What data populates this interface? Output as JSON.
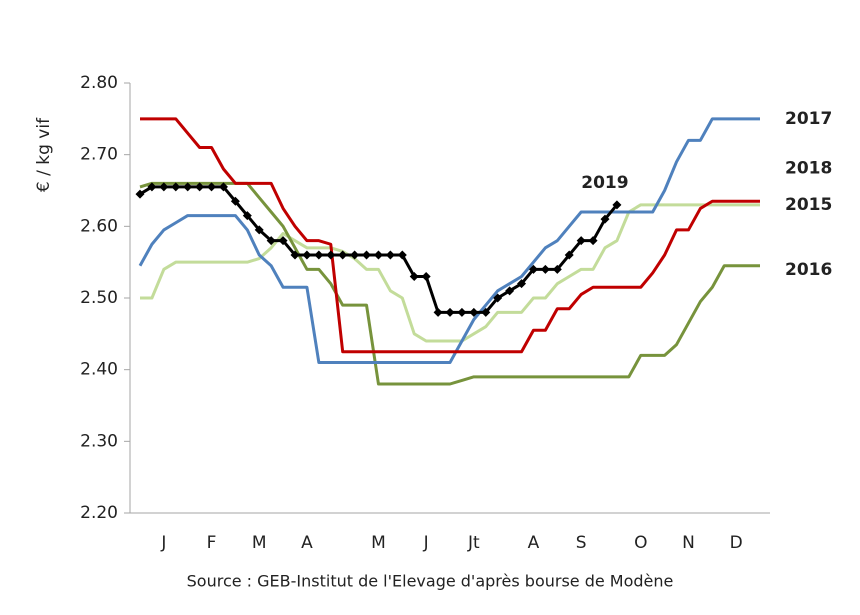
{
  "chart_data": {
    "type": "line",
    "y_label": "€ / kg vif",
    "source": "Source : GEB-Institut de l'Elevage d'après bourse de Modène",
    "categories": [
      null,
      null,
      "J",
      null,
      null,
      null,
      "F",
      null,
      null,
      null,
      "M",
      null,
      null,
      null,
      "A",
      null,
      null,
      null,
      null,
      null,
      "M",
      null,
      null,
      null,
      "J",
      null,
      null,
      null,
      "Jt",
      null,
      null,
      null,
      null,
      "A",
      null,
      null,
      null,
      "S",
      null,
      null,
      null,
      null,
      "O",
      null,
      null,
      null,
      "N",
      null,
      null,
      null,
      "D",
      null,
      null
    ],
    "ylim": [
      2.2,
      2.8
    ],
    "yticks": [
      {
        "value": 2.2,
        "label": "2.20"
      },
      {
        "value": 2.3,
        "label": "2.30"
      },
      {
        "value": 2.4,
        "label": "2.40"
      },
      {
        "value": 2.5,
        "label": "2.50"
      },
      {
        "value": 2.6,
        "label": "2.60"
      },
      {
        "value": 2.7,
        "label": "2.70"
      },
      {
        "value": 2.8,
        "label": "2.80"
      }
    ],
    "series": [
      {
        "name": "2015",
        "color": "#c3dc9a",
        "values": [
          2.5,
          2.5,
          2.54,
          2.55,
          2.55,
          2.55,
          2.55,
          2.55,
          2.55,
          2.55,
          2.555,
          2.57,
          2.59,
          2.58,
          2.57,
          2.57,
          2.57,
          2.565,
          2.555,
          2.54,
          2.54,
          2.51,
          2.5,
          2.45,
          2.44,
          2.44,
          2.44,
          2.44,
          2.45,
          2.46,
          2.48,
          2.48,
          2.48,
          2.5,
          2.5,
          2.52,
          2.53,
          2.54,
          2.54,
          2.57,
          2.58,
          2.62,
          2.63,
          2.63,
          2.63,
          2.63,
          2.63,
          2.63,
          2.63,
          2.63,
          2.63,
          2.63,
          2.63
        ]
      },
      {
        "name": "2016",
        "color": "#77933c",
        "values": [
          2.655,
          2.66,
          2.66,
          2.66,
          2.66,
          2.66,
          2.66,
          2.66,
          2.66,
          2.66,
          2.64,
          2.62,
          2.6,
          2.57,
          2.54,
          2.54,
          2.52,
          2.49,
          2.49,
          2.49,
          2.38,
          2.38,
          2.38,
          2.38,
          2.38,
          2.38,
          2.38,
          2.385,
          2.39,
          2.39,
          2.39,
          2.39,
          2.39,
          2.39,
          2.39,
          2.39,
          2.39,
          2.39,
          2.39,
          2.39,
          2.39,
          2.39,
          2.42,
          2.42,
          2.42,
          2.435,
          2.465,
          2.495,
          2.515,
          2.545,
          2.545,
          2.545,
          2.545
        ]
      },
      {
        "name": "2017",
        "color": "#4f81bd",
        "values": [
          2.545,
          2.575,
          2.595,
          2.605,
          2.615,
          2.615,
          2.615,
          2.615,
          2.615,
          2.595,
          2.56,
          2.545,
          2.515,
          2.515,
          2.515,
          2.41,
          2.41,
          2.41,
          2.41,
          2.41,
          2.41,
          2.41,
          2.41,
          2.41,
          2.41,
          2.41,
          2.41,
          2.44,
          2.47,
          2.49,
          2.51,
          2.52,
          2.53,
          2.55,
          2.57,
          2.58,
          2.6,
          2.62,
          2.62,
          2.62,
          2.62,
          2.62,
          2.62,
          2.62,
          2.65,
          2.69,
          2.72,
          2.72,
          2.75,
          2.75,
          2.75,
          2.75,
          2.75
        ]
      },
      {
        "name": "2018",
        "color": "#c00000",
        "values": [
          2.75,
          2.75,
          2.75,
          2.75,
          2.73,
          2.71,
          2.71,
          2.68,
          2.66,
          2.66,
          2.66,
          2.66,
          2.625,
          2.6,
          2.58,
          2.58,
          2.575,
          2.425,
          2.425,
          2.425,
          2.425,
          2.425,
          2.425,
          2.425,
          2.425,
          2.425,
          2.425,
          2.425,
          2.425,
          2.425,
          2.425,
          2.425,
          2.425,
          2.455,
          2.455,
          2.485,
          2.485,
          2.505,
          2.515,
          2.515,
          2.515,
          2.515,
          2.515,
          2.535,
          2.56,
          2.595,
          2.595,
          2.625,
          2.635,
          2.635,
          2.635,
          2.635,
          2.635
        ]
      },
      {
        "name": "2019",
        "color": "#000000",
        "markers": true,
        "values": [
          2.645,
          2.655,
          2.655,
          2.655,
          2.655,
          2.655,
          2.655,
          2.655,
          2.635,
          2.615,
          2.595,
          2.58,
          2.58,
          2.56,
          2.56,
          2.56,
          2.56,
          2.56,
          2.56,
          2.56,
          2.56,
          2.56,
          2.56,
          2.53,
          2.53,
          2.48,
          2.48,
          2.48,
          2.48,
          2.48,
          2.5,
          2.51,
          2.52,
          2.54,
          2.54,
          2.54,
          2.56,
          2.58,
          2.58,
          2.61,
          2.63,
          null,
          null,
          null,
          null,
          null,
          null,
          null,
          null,
          null,
          null,
          null,
          null
        ]
      }
    ]
  }
}
